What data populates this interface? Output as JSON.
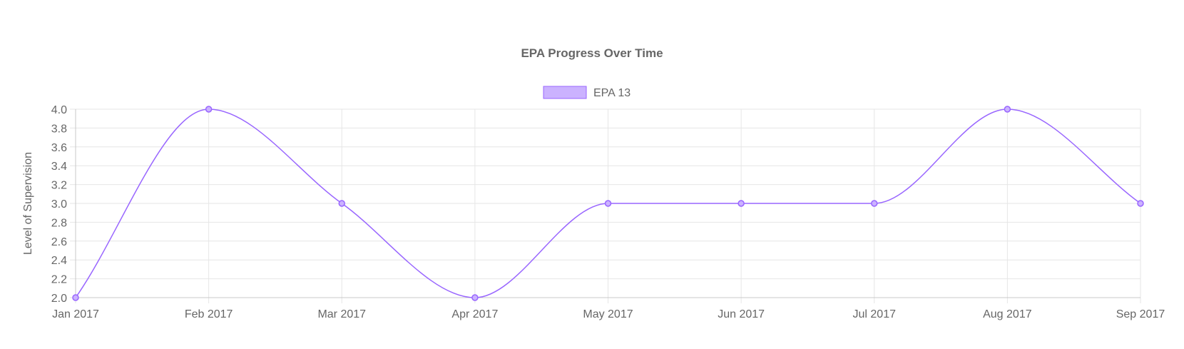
{
  "chart_data": {
    "type": "line",
    "title": "EPA Progress Over Time",
    "xlabel": "",
    "ylabel": "Level of Supervision",
    "categories": [
      "Jan 2017",
      "Feb 2017",
      "Mar 2017",
      "Apr 2017",
      "May 2017",
      "Jun 2017",
      "Jul 2017",
      "Aug 2017",
      "Sep 2017"
    ],
    "series": [
      {
        "name": "EPA 13",
        "values": [
          2,
          4,
          3,
          2,
          3,
          3,
          3,
          4,
          3
        ],
        "color": "#9966ff",
        "fill": "#cbb2ff"
      }
    ],
    "ylim": [
      2.0,
      4.0
    ],
    "yticks": [
      "2.0",
      "2.2",
      "2.4",
      "2.6",
      "2.8",
      "3.0",
      "3.2",
      "3.4",
      "3.6",
      "3.8",
      "4.0"
    ],
    "grid": true,
    "legend": "top-center",
    "smooth": true
  }
}
